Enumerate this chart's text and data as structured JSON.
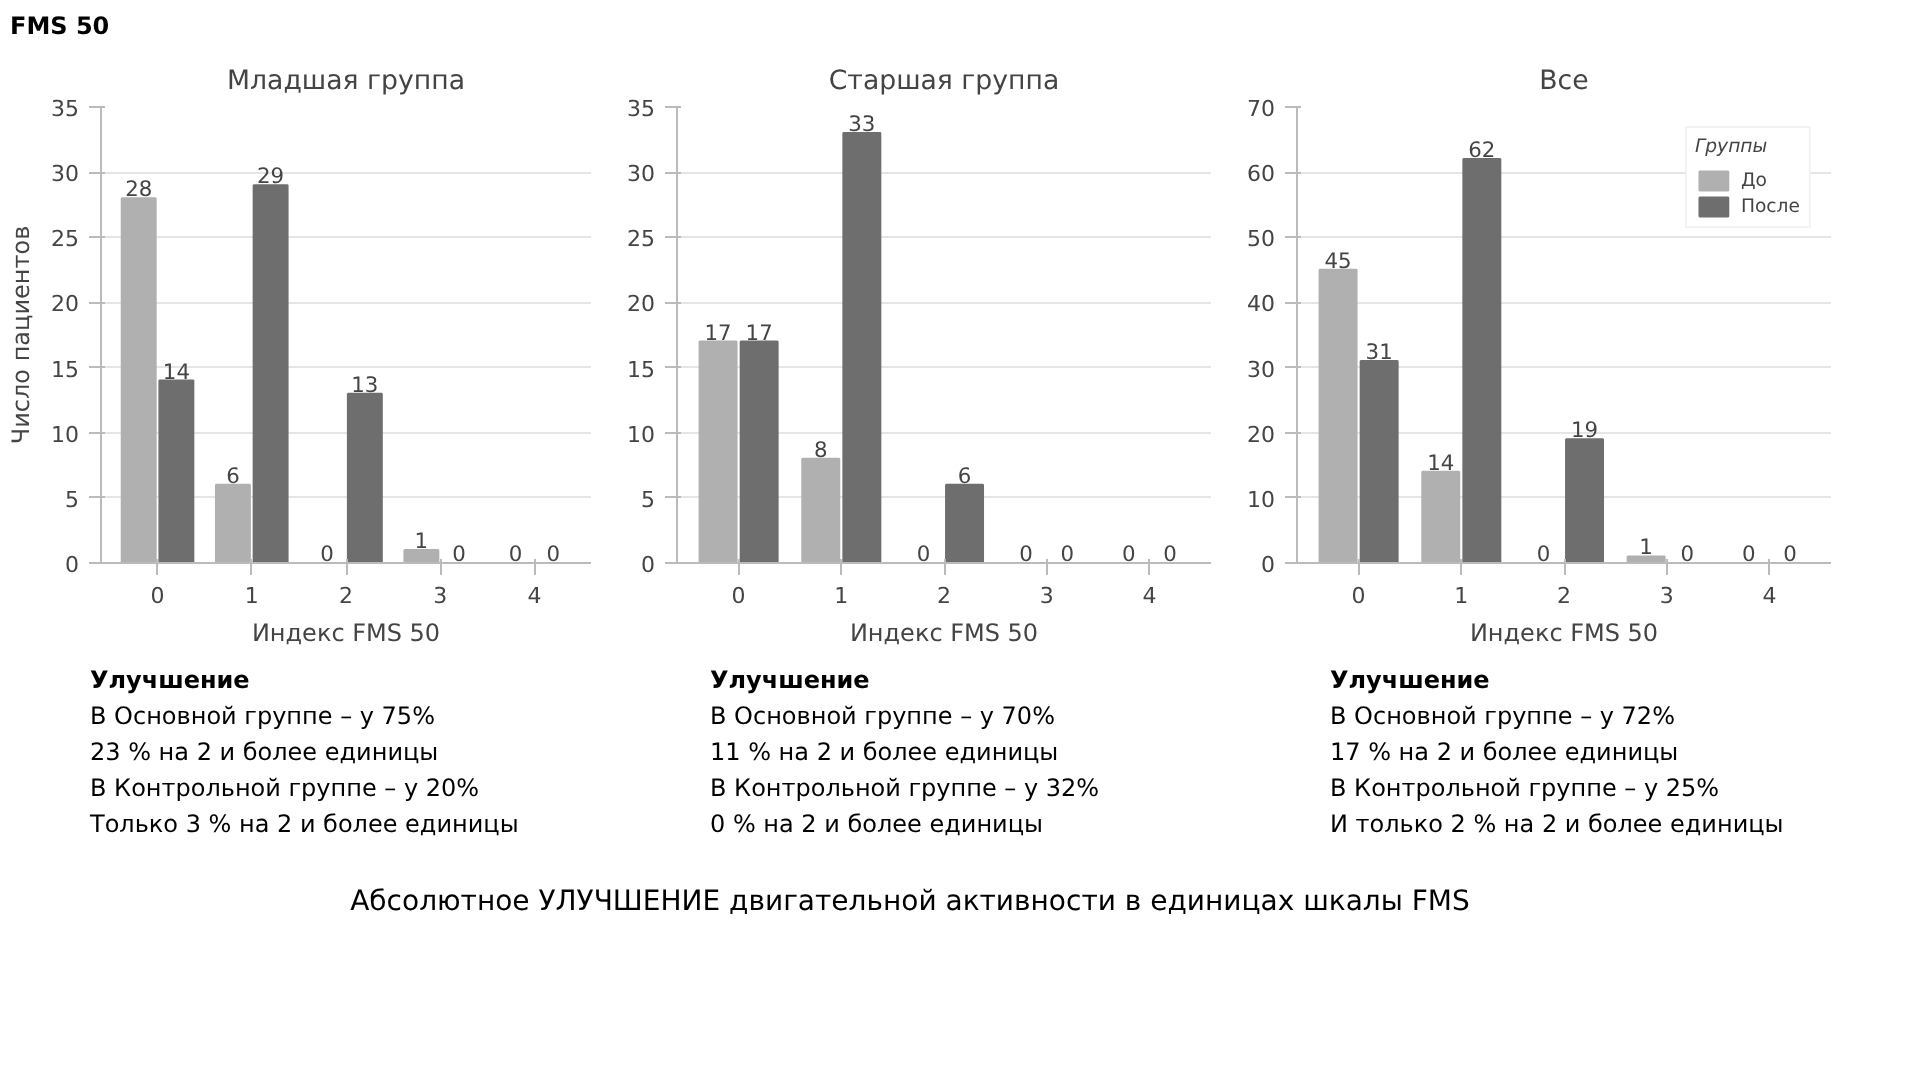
{
  "chart_data": [
    {
      "type": "bar",
      "title": "Младшая группа",
      "xlabel": "Индекс FMS 50",
      "ylabel": "Число пациентов",
      "categories": [
        "0",
        "1",
        "2",
        "3",
        "4"
      ],
      "series": [
        {
          "color": "#b0b0b0",
          "values": [
            28,
            6,
            0,
            1,
            0
          ]
        },
        {
          "color": "#6e6e6e",
          "values": [
            14,
            29,
            13,
            0,
            0
          ]
        }
      ],
      "ylim": [
        0,
        35
      ],
      "yticks": [
        0,
        5,
        10,
        15,
        20,
        25,
        30,
        35
      ],
      "grid": "y",
      "data_labels": true,
      "annotations": [
        "FMS 50",
        "Улучшение",
        "В Основной группе – у 75%",
        "23 % на 2 и более единицы",
        "В Контрольной группе – у 20%",
        "Только 3 % на 2 и более единицы"
      ]
    },
    {
      "type": "bar",
      "title": "Старшая группа",
      "xlabel": "Индекс FMS 50",
      "categories": [
        "0",
        "1",
        "2",
        "3",
        "4"
      ],
      "series": [
        {
          "color": "#b0b0b0",
          "values": [
            17,
            8,
            0,
            0,
            0
          ]
        },
        {
          "color": "#6e6e6e",
          "values": [
            17,
            33,
            6,
            0,
            0
          ]
        }
      ],
      "ylim": [
        0,
        35
      ],
      "yticks": [
        0,
        5,
        10,
        15,
        20,
        25,
        30,
        35
      ],
      "grid": "y",
      "data_labels": true,
      "annotations": [
        "Улучшение",
        "В Основной группе – у 70%",
        "11 % на 2 и более единицы",
        "В Контрольной группе – у 32%",
        "0 % на 2 и более единицы"
      ]
    },
    {
      "type": "bar",
      "title": "Все",
      "xlabel": "Индекс FMS 50",
      "categories": [
        "0",
        "1",
        "2",
        "3",
        "4"
      ],
      "series": [
        {
          "name": "До",
          "color": "#b0b0b0",
          "values": [
            45,
            14,
            0,
            1,
            0
          ]
        },
        {
          "name": "После",
          "color": "#6e6e6e",
          "values": [
            31,
            62,
            19,
            0,
            0
          ]
        }
      ],
      "ylim": [
        0,
        70
      ],
      "yticks": [
        0,
        10,
        20,
        30,
        40,
        50,
        60,
        70
      ],
      "grid": "y",
      "data_labels": true,
      "legend": "top right",
      "legend_title": "Группы",
      "annotations": [
        "Улучшение",
        "В Основной группе – у 72%",
        "17 % на 2 и более единицы",
        "В Контрольной группе – у 25%",
        "И только 2 % на 2 и более единицы",
        "Абсолютное УЛУЧШЕНИЕ двигательной активности в единицах шкалы FMS"
      ]
    }
  ]
}
